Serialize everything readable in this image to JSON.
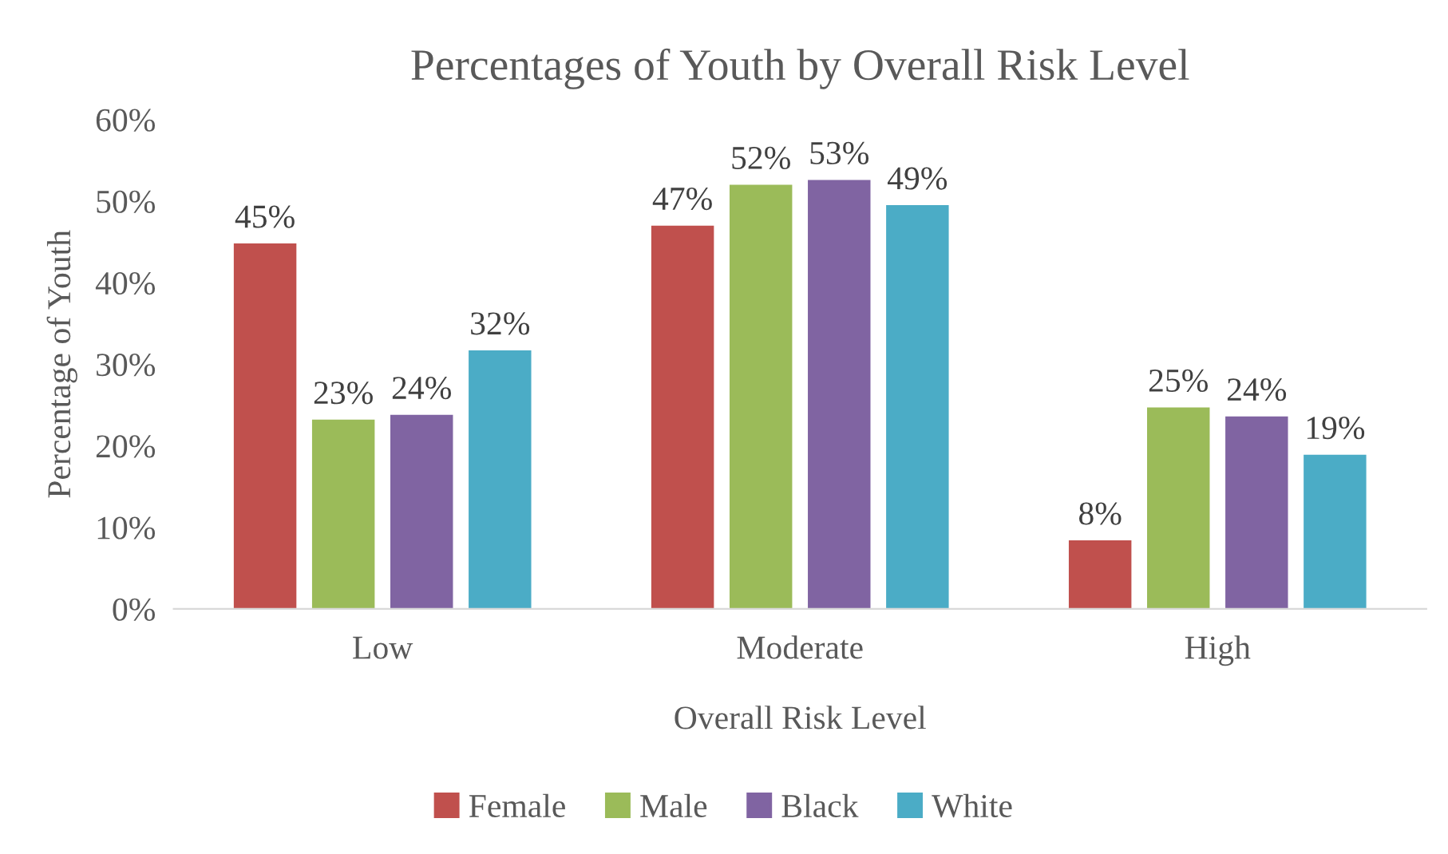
{
  "chart_data": {
    "type": "bar",
    "title": "Percentages of Youth by Overall Risk Level",
    "xlabel": "Overall Risk Level",
    "ylabel": "Percentage of Youth",
    "categories": [
      "Low",
      "Moderate",
      "High"
    ],
    "series": [
      {
        "name": "Female",
        "color": "#c0504d",
        "values": [
          44.8,
          47.0,
          8.4
        ],
        "value_labels": [
          "45%",
          "47%",
          "8%"
        ]
      },
      {
        "name": "Male",
        "color": "#9bbb59",
        "values": [
          23.2,
          52.0,
          24.7
        ],
        "value_labels": [
          "23%",
          "52%",
          "25%"
        ]
      },
      {
        "name": "Black",
        "color": "#8064a2",
        "values": [
          23.8,
          52.6,
          23.6
        ],
        "value_labels": [
          "24%",
          "53%",
          "24%"
        ]
      },
      {
        "name": "White",
        "color": "#4bacc6",
        "values": [
          31.7,
          49.5,
          18.9
        ],
        "value_labels": [
          "32%",
          "49%",
          "19%"
        ]
      }
    ],
    "ylim": [
      0,
      60
    ],
    "yticks": [
      {
        "value": 0,
        "label": "0%"
      },
      {
        "value": 10,
        "label": "10%"
      },
      {
        "value": 20,
        "label": "20%"
      },
      {
        "value": 30,
        "label": "30%"
      },
      {
        "value": 40,
        "label": "40%"
      },
      {
        "value": 50,
        "label": "50%"
      },
      {
        "value": 60,
        "label": "60%"
      }
    ],
    "grid": false,
    "legend": "bottom"
  }
}
